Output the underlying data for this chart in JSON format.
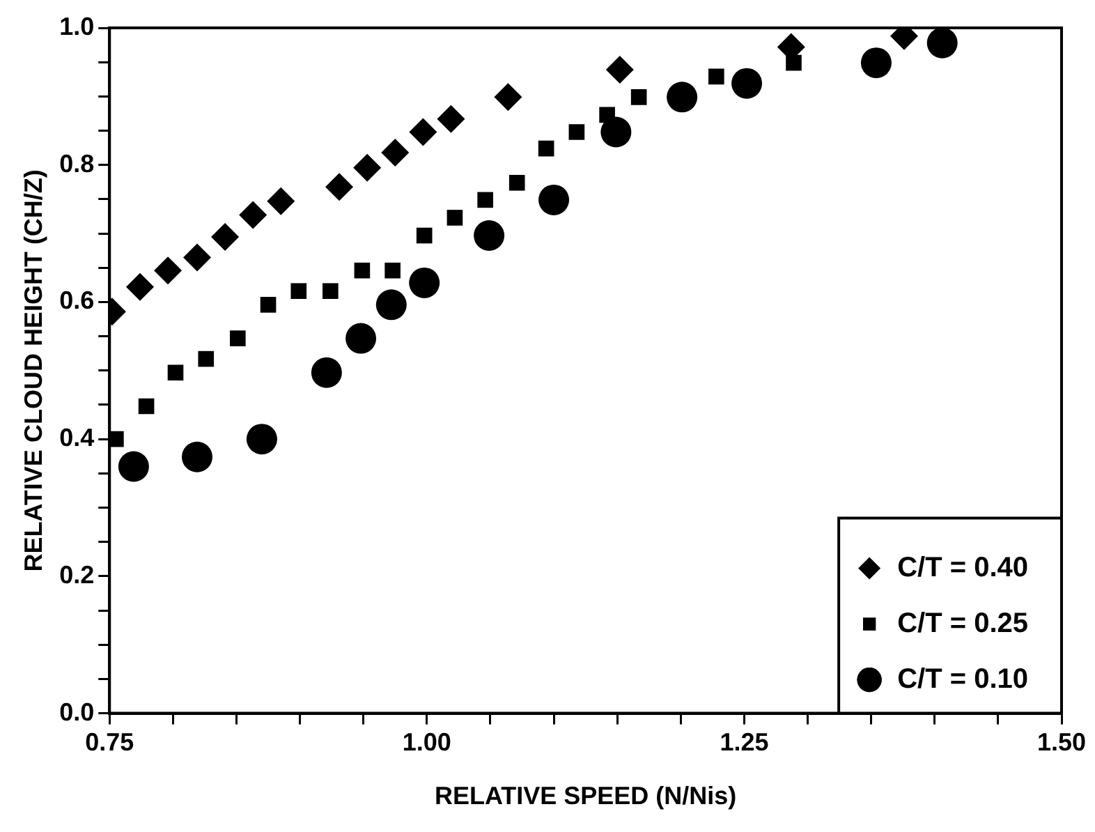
{
  "chart_data": {
    "type": "scatter",
    "xlabel": "RELATIVE SPEED (N/Nis)",
    "ylabel": "RELATIVE CLOUD HEIGHT (CH/Z)",
    "xlim": [
      0.75,
      1.5
    ],
    "ylim": [
      0,
      1
    ],
    "xticks": [
      {
        "value": 0.75,
        "label": "0.75"
      },
      {
        "value": 0.8,
        "label": null
      },
      {
        "value": 0.85,
        "label": null
      },
      {
        "value": 0.9,
        "label": null
      },
      {
        "value": 0.95,
        "label": null
      },
      {
        "value": 1,
        "label": "1.00"
      },
      {
        "value": 1.05,
        "label": null
      },
      {
        "value": 1.1,
        "label": null
      },
      {
        "value": 1.15,
        "label": null
      },
      {
        "value": 1.2,
        "label": null
      },
      {
        "value": 1.25,
        "label": "1.25"
      },
      {
        "value": 1.3,
        "label": null
      },
      {
        "value": 1.35,
        "label": null
      },
      {
        "value": 1.4,
        "label": null
      },
      {
        "value": 1.45,
        "label": null
      },
      {
        "value": 1.5,
        "label": "1.50"
      }
    ],
    "yticks": [
      {
        "value": 0,
        "label": "0.0"
      },
      {
        "value": 0.05,
        "label": null
      },
      {
        "value": 0.1,
        "label": null
      },
      {
        "value": 0.15,
        "label": null
      },
      {
        "value": 0.2,
        "label": "0.2"
      },
      {
        "value": 0.25,
        "label": null
      },
      {
        "value": 0.3,
        "label": null
      },
      {
        "value": 0.35,
        "label": null
      },
      {
        "value": 0.4,
        "label": "0.4"
      },
      {
        "value": 0.45,
        "label": null
      },
      {
        "value": 0.5,
        "label": null
      },
      {
        "value": 0.55,
        "label": null
      },
      {
        "value": 0.6,
        "label": "0.6"
      },
      {
        "value": 0.65,
        "label": null
      },
      {
        "value": 0.7,
        "label": null
      },
      {
        "value": 0.75,
        "label": null
      },
      {
        "value": 0.8,
        "label": "0.8"
      },
      {
        "value": 0.85,
        "label": null
      },
      {
        "value": 0.9,
        "label": null
      },
      {
        "value": 0.95,
        "label": null
      },
      {
        "value": 1,
        "label": "1.0"
      }
    ],
    "grid": false,
    "legend": "bottom right",
    "series": [
      {
        "name": "C/T = 0.40",
        "color": "#000000",
        "marker": "diamond",
        "x": [
          0.752,
          0.774,
          0.796,
          0.819,
          0.841,
          0.863,
          0.885,
          0.931,
          0.953,
          0.975,
          0.997,
          1.019,
          1.064,
          1.152,
          1.287,
          1.376
        ],
        "values": [
          0.586,
          0.622,
          0.646,
          0.665,
          0.695,
          0.727,
          0.747,
          0.768,
          0.796,
          0.818,
          0.848,
          0.867,
          0.899,
          0.939,
          0.972,
          0.988
        ]
      },
      {
        "name": "C/T = 0.25",
        "color": "#000000",
        "marker": "square",
        "x": [
          0.755,
          0.779,
          0.802,
          0.826,
          0.851,
          0.875,
          0.899,
          0.924,
          0.949,
          0.973,
          0.998,
          1.022,
          1.046,
          1.071,
          1.094,
          1.118,
          1.142,
          1.167,
          1.228,
          1.289
        ],
        "values": [
          0.4,
          0.448,
          0.497,
          0.517,
          0.547,
          0.596,
          0.616,
          0.616,
          0.646,
          0.646,
          0.697,
          0.723,
          0.749,
          0.774,
          0.824,
          0.848,
          0.873,
          0.899,
          0.929,
          0.949
        ]
      },
      {
        "name": "C/T = 0.10",
        "color": "#000000",
        "marker": "circle",
        "x": [
          0.769,
          0.819,
          0.87,
          0.921,
          0.948,
          0.972,
          0.998,
          1.049,
          1.1,
          1.149,
          1.201,
          1.252,
          1.354,
          1.406
        ],
        "values": [
          0.36,
          0.374,
          0.4,
          0.497,
          0.547,
          0.596,
          0.628,
          0.697,
          0.749,
          0.848,
          0.899,
          0.919,
          0.949,
          0.978
        ]
      }
    ]
  }
}
